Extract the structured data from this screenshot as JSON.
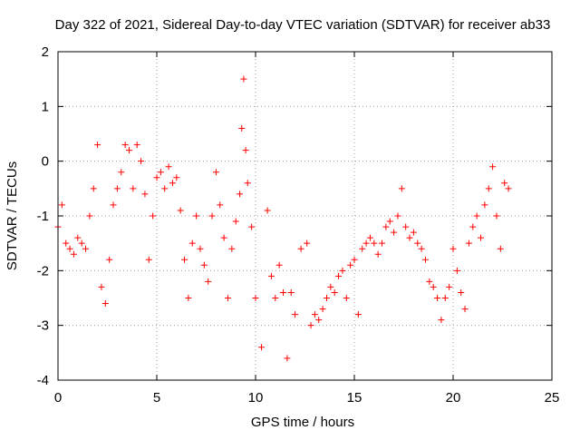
{
  "chart_data": {
    "type": "scatter",
    "title": "Day 322 of 2021, Sidereal Day-to-day VTEC variation (SDTVAR) for receiver ab33",
    "xlabel": "GPS time / hours",
    "ylabel": "SDTVAR / TECUs",
    "xlim": [
      0,
      25
    ],
    "ylim": [
      -4,
      2
    ],
    "xticks": [
      0,
      5,
      10,
      15,
      20,
      25
    ],
    "yticks": [
      -4,
      -3,
      -2,
      -1,
      0,
      1,
      2
    ],
    "xtick_labels": [
      "0",
      "5",
      "10",
      "15",
      "20",
      "25"
    ],
    "ytick_labels": [
      "-4",
      "-3",
      "-2",
      "-1",
      "0",
      "1",
      "2"
    ],
    "grid": true,
    "marker": "+",
    "series": [
      {
        "name": "SDTVAR",
        "color": "#ff0000",
        "x": [
          0.0,
          0.2,
          0.4,
          0.6,
          0.8,
          1.0,
          1.2,
          1.4,
          1.6,
          1.8,
          2.0,
          2.2,
          2.4,
          2.6,
          2.8,
          3.0,
          3.2,
          3.4,
          3.6,
          3.8,
          4.0,
          4.2,
          4.4,
          4.6,
          4.8,
          5.0,
          5.2,
          5.4,
          5.6,
          5.8,
          6.0,
          6.2,
          6.4,
          6.6,
          6.8,
          7.0,
          7.2,
          7.4,
          7.6,
          7.8,
          8.0,
          8.2,
          8.4,
          8.6,
          8.8,
          9.0,
          9.2,
          9.3,
          9.4,
          9.5,
          9.6,
          9.8,
          10.0,
          10.3,
          10.6,
          10.8,
          11.0,
          11.2,
          11.4,
          11.6,
          11.8,
          12.0,
          12.3,
          12.6,
          12.8,
          13.0,
          13.2,
          13.4,
          13.6,
          13.8,
          14.0,
          14.2,
          14.4,
          14.6,
          14.8,
          15.0,
          15.2,
          15.4,
          15.6,
          15.8,
          16.0,
          16.2,
          16.4,
          16.6,
          16.8,
          17.0,
          17.2,
          17.4,
          17.6,
          17.8,
          18.0,
          18.2,
          18.4,
          18.6,
          18.8,
          19.0,
          19.2,
          19.4,
          19.6,
          19.8,
          20.0,
          20.2,
          20.4,
          20.6,
          20.8,
          21.0,
          21.2,
          21.4,
          21.6,
          21.8,
          22.0,
          22.2,
          22.4,
          22.6,
          22.8
        ],
        "y": [
          -1.2,
          -0.8,
          -1.5,
          -1.6,
          -1.7,
          -1.4,
          -1.5,
          -1.6,
          -1.0,
          -0.5,
          0.3,
          -2.3,
          -2.6,
          -1.8,
          -0.8,
          -0.5,
          -0.2,
          0.3,
          0.2,
          -0.5,
          0.3,
          0.0,
          -0.6,
          -1.8,
          -1.0,
          -0.3,
          -0.2,
          -0.5,
          -0.1,
          -0.4,
          -0.3,
          -0.9,
          -1.8,
          -2.5,
          -1.5,
          -1.0,
          -1.6,
          -1.9,
          -2.2,
          -1.0,
          -0.2,
          -0.8,
          -1.4,
          -2.5,
          -1.6,
          -1.1,
          -0.6,
          0.6,
          1.5,
          0.2,
          -0.4,
          -1.2,
          -2.5,
          -3.4,
          -0.9,
          -2.1,
          -2.5,
          -1.9,
          -2.4,
          -3.6,
          -2.4,
          -2.8,
          -1.6,
          -1.5,
          -3.0,
          -2.8,
          -2.9,
          -2.7,
          -2.5,
          -2.3,
          -2.4,
          -2.1,
          -2.0,
          -2.5,
          -1.9,
          -1.8,
          -2.8,
          -1.6,
          -1.5,
          -1.4,
          -1.5,
          -1.7,
          -1.5,
          -1.2,
          -1.1,
          -1.3,
          -1.0,
          -0.5,
          -1.2,
          -1.4,
          -1.3,
          -1.5,
          -1.6,
          -1.8,
          -2.2,
          -2.3,
          -2.5,
          -2.9,
          -2.5,
          -2.3,
          -1.6,
          -2.0,
          -2.4,
          -2.7,
          -1.5,
          -1.2,
          -1.0,
          -1.4,
          -0.8,
          -0.5,
          -0.1,
          -1.0,
          -1.6,
          -0.4,
          -0.5
        ]
      }
    ]
  }
}
